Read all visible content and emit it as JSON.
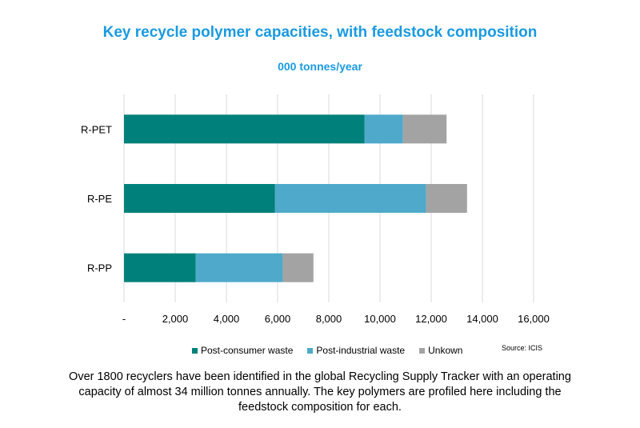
{
  "chart_data": {
    "type": "bar",
    "orientation": "horizontal",
    "stacked": true,
    "title": "Key recycle polymer capacities, with feedstock composition",
    "subtitle": "000 tonnes/year",
    "categories": [
      "R-PET",
      "R-PE",
      "R-PP"
    ],
    "series": [
      {
        "name": "Post-consumer waste",
        "color": "#00807a",
        "values": [
          9400,
          5900,
          2800
        ]
      },
      {
        "name": "Post-industrial waste",
        "color": "#4ea9ca",
        "values": [
          1500,
          5900,
          3400
        ]
      },
      {
        "name": "Unkown",
        "color": "#a3a3a3",
        "values": [
          1700,
          1600,
          1200
        ]
      }
    ],
    "xlim": [
      0,
      16000
    ],
    "x_ticks": [
      0,
      2000,
      4000,
      6000,
      8000,
      10000,
      12000,
      14000,
      16000
    ],
    "x_tick_labels": [
      "-",
      "2,000",
      "4,000",
      "6,000",
      "8,000",
      "10,000",
      "12,000",
      "14,000",
      "16,000"
    ],
    "grid": true,
    "legend_position": "bottom"
  },
  "source": "Source: ICIS",
  "caption": "Over 1800 recyclers have been identified in the global Recycling Supply Tracker with an operating capacity of almost 34 million tonnes annually.  The key polymers are profiled here including the feedstock composition for each."
}
